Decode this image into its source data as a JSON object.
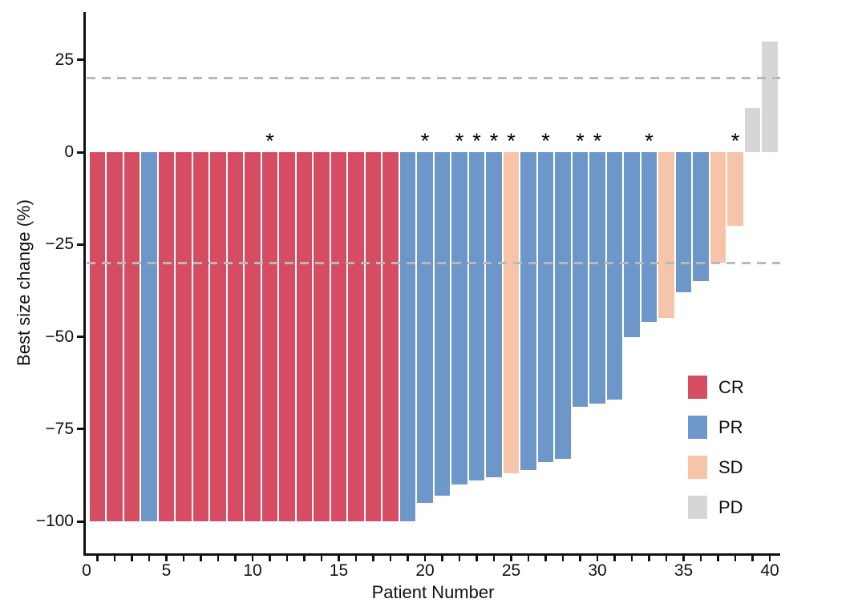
{
  "legend": {
    "items": [
      {
        "label": "CR",
        "color": "#d64d63"
      },
      {
        "label": "PR",
        "color": "#6d97c8"
      },
      {
        "label": "SD",
        "color": "#f6c4a8"
      },
      {
        "label": "PD",
        "color": "#d6d6d6"
      }
    ]
  },
  "annotations": {
    "asterisk_symbol": "*",
    "starred_patients": [
      11,
      20,
      22,
      23,
      24,
      25,
      27,
      29,
      30,
      33,
      38
    ]
  },
  "chart_data": {
    "type": "bar",
    "title": "",
    "xlabel": "Patient Number",
    "ylabel": "Best size change (%)",
    "ylim": [
      -109,
      38
    ],
    "xlim": [
      0,
      40.7
    ],
    "grid": false,
    "legend_position": "right-middle",
    "reference_lines": [
      20,
      -30
    ],
    "y_axis": {
      "tick_values": [
        25,
        0,
        -25,
        -50,
        -75,
        -100
      ],
      "tick_labels": [
        "25",
        "0",
        "−25",
        "−50",
        "−75",
        "−100"
      ]
    },
    "x_axis": {
      "tick_values": [
        0,
        5,
        10,
        15,
        20,
        25,
        30,
        35,
        40
      ],
      "tick_labels": [
        "0",
        "5",
        "10",
        "15",
        "20",
        "25",
        "30",
        "35",
        "40"
      ],
      "minor_ticks_at_each_bar": true
    },
    "patients": [
      {
        "patient": 1,
        "value": -100,
        "response": "CR",
        "star": false
      },
      {
        "patient": 2,
        "value": -100,
        "response": "CR",
        "star": false
      },
      {
        "patient": 3,
        "value": -100,
        "response": "CR",
        "star": false
      },
      {
        "patient": 4,
        "value": -100,
        "response": "PR",
        "star": false
      },
      {
        "patient": 5,
        "value": -100,
        "response": "CR",
        "star": false
      },
      {
        "patient": 6,
        "value": -100,
        "response": "CR",
        "star": false
      },
      {
        "patient": 7,
        "value": -100,
        "response": "CR",
        "star": false
      },
      {
        "patient": 8,
        "value": -100,
        "response": "CR",
        "star": false
      },
      {
        "patient": 9,
        "value": -100,
        "response": "CR",
        "star": false
      },
      {
        "patient": 10,
        "value": -100,
        "response": "CR",
        "star": false
      },
      {
        "patient": 11,
        "value": -100,
        "response": "CR",
        "star": true
      },
      {
        "patient": 12,
        "value": -100,
        "response": "CR",
        "star": false
      },
      {
        "patient": 13,
        "value": -100,
        "response": "CR",
        "star": false
      },
      {
        "patient": 14,
        "value": -100,
        "response": "CR",
        "star": false
      },
      {
        "patient": 15,
        "value": -100,
        "response": "CR",
        "star": false
      },
      {
        "patient": 16,
        "value": -100,
        "response": "CR",
        "star": false
      },
      {
        "patient": 17,
        "value": -100,
        "response": "CR",
        "star": false
      },
      {
        "patient": 18,
        "value": -100,
        "response": "CR",
        "star": false
      },
      {
        "patient": 19,
        "value": -100,
        "response": "PR",
        "star": false
      },
      {
        "patient": 20,
        "value": -95,
        "response": "PR",
        "star": true
      },
      {
        "patient": 21,
        "value": -93,
        "response": "PR",
        "star": false
      },
      {
        "patient": 22,
        "value": -90,
        "response": "PR",
        "star": true
      },
      {
        "patient": 23,
        "value": -89,
        "response": "PR",
        "star": true
      },
      {
        "patient": 24,
        "value": -88,
        "response": "PR",
        "star": true
      },
      {
        "patient": 25,
        "value": -87,
        "response": "SD",
        "star": true
      },
      {
        "patient": 26,
        "value": -86,
        "response": "PR",
        "star": false
      },
      {
        "patient": 27,
        "value": -84,
        "response": "PR",
        "star": true
      },
      {
        "patient": 28,
        "value": -83,
        "response": "PR",
        "star": false
      },
      {
        "patient": 29,
        "value": -69,
        "response": "PR",
        "star": true
      },
      {
        "patient": 30,
        "value": -68,
        "response": "PR",
        "star": true
      },
      {
        "patient": 31,
        "value": -67,
        "response": "PR",
        "star": false
      },
      {
        "patient": 32,
        "value": -50,
        "response": "PR",
        "star": false
      },
      {
        "patient": 33,
        "value": -46,
        "response": "PR",
        "star": true
      },
      {
        "patient": 34,
        "value": -45,
        "response": "SD",
        "star": false
      },
      {
        "patient": 35,
        "value": -38,
        "response": "PR",
        "star": false
      },
      {
        "patient": 36,
        "value": -35,
        "response": "PR",
        "star": false
      },
      {
        "patient": 37,
        "value": -30,
        "response": "SD",
        "star": false
      },
      {
        "patient": 38,
        "value": -20,
        "response": "SD",
        "star": true
      },
      {
        "patient": 39,
        "value": 12,
        "response": "PD",
        "star": false
      },
      {
        "patient": 40,
        "value": 30,
        "response": "PD",
        "star": false
      }
    ]
  }
}
